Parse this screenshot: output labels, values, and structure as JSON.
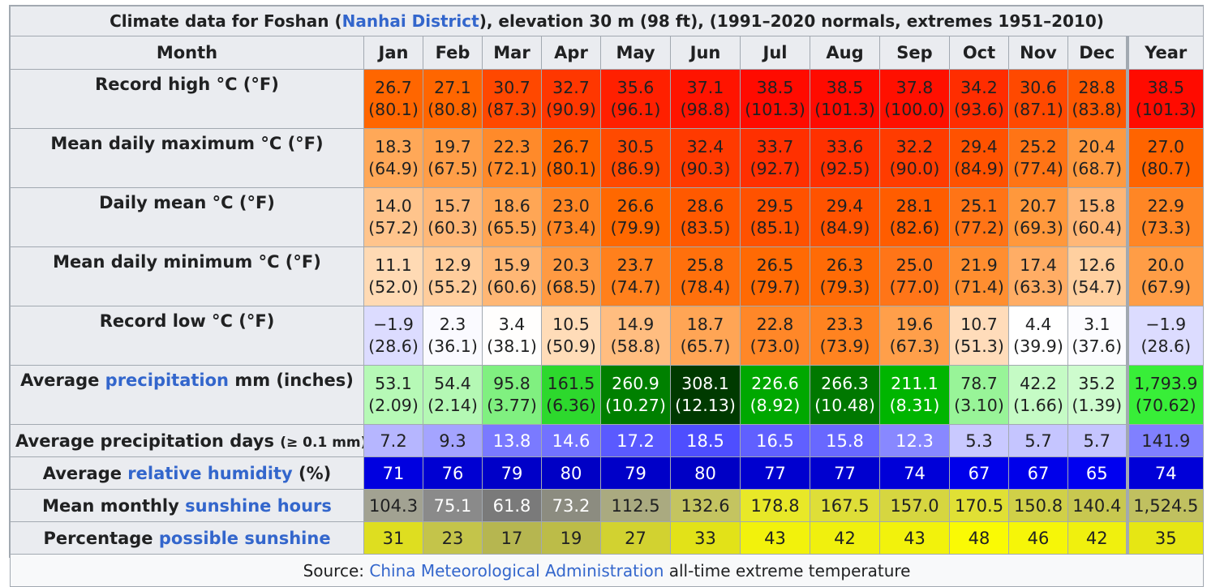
{
  "caption": {
    "prefix": "Climate data for Foshan (",
    "link": "Nanhai District",
    "suffix": "), elevation 30 m (98 ft), (1991–2020 normals, extremes 1951–2010)"
  },
  "header": {
    "month_label": "Month",
    "months": [
      "Jan",
      "Feb",
      "Mar",
      "Apr",
      "May",
      "Jun",
      "Jul",
      "Aug",
      "Sep",
      "Oct",
      "Nov",
      "Dec"
    ],
    "year_label": "Year"
  },
  "rows": {
    "record_high": {
      "label": "Record high °C (°F)",
      "cells": [
        {
          "c": "26.7",
          "f": "(80.1)",
          "bg": "#ff6600"
        },
        {
          "c": "27.1",
          "f": "(80.8)",
          "bg": "#ff6600"
        },
        {
          "c": "30.7",
          "f": "(87.3)",
          "bg": "#ff4800"
        },
        {
          "c": "32.7",
          "f": "(90.9)",
          "bg": "#ff3700"
        },
        {
          "c": "35.6",
          "f": "(96.1)",
          "bg": "#ff2000"
        },
        {
          "c": "37.1",
          "f": "(98.8)",
          "bg": "#ff1400"
        },
        {
          "c": "38.5",
          "f": "(101.3)",
          "bg": "#ff0b00"
        },
        {
          "c": "38.5",
          "f": "(101.3)",
          "bg": "#ff0b00"
        },
        {
          "c": "37.8",
          "f": "(100.0)",
          "bg": "#ff1000"
        },
        {
          "c": "34.2",
          "f": "(93.6)",
          "bg": "#ff2d00"
        },
        {
          "c": "30.6",
          "f": "(87.1)",
          "bg": "#ff4900"
        },
        {
          "c": "28.8",
          "f": "(83.8)",
          "bg": "#ff5800"
        },
        {
          "c": "38.5",
          "f": "(101.3)",
          "bg": "#ff0b00"
        }
      ]
    },
    "mean_max": {
      "label": "Mean daily maximum °C (°F)",
      "cells": [
        {
          "c": "18.3",
          "f": "(64.9)",
          "bg": "#ffa858"
        },
        {
          "c": "19.7",
          "f": "(67.5)",
          "bg": "#ff9e48"
        },
        {
          "c": "22.3",
          "f": "(72.1)",
          "bg": "#ff8a2a"
        },
        {
          "c": "26.7",
          "f": "(80.1)",
          "bg": "#ff6600"
        },
        {
          "c": "30.5",
          "f": "(86.9)",
          "bg": "#ff4a00"
        },
        {
          "c": "32.4",
          "f": "(90.3)",
          "bg": "#ff3a00"
        },
        {
          "c": "33.7",
          "f": "(92.7)",
          "bg": "#ff3000"
        },
        {
          "c": "33.6",
          "f": "(92.5)",
          "bg": "#ff3100"
        },
        {
          "c": "32.2",
          "f": "(90.0)",
          "bg": "#ff3c00"
        },
        {
          "c": "29.4",
          "f": "(84.9)",
          "bg": "#ff5200"
        },
        {
          "c": "25.2",
          "f": "(77.4)",
          "bg": "#ff7415"
        },
        {
          "c": "20.4",
          "f": "(68.7)",
          "bg": "#ff9a40"
        },
        {
          "c": "27.0",
          "f": "(80.7)",
          "bg": "#ff6400"
        }
      ]
    },
    "daily_mean": {
      "label": "Daily mean °C (°F)",
      "cells": [
        {
          "c": "14.0",
          "f": "(57.2)",
          "bg": "#ffc48c"
        },
        {
          "c": "15.7",
          "f": "(60.3)",
          "bg": "#ffb878"
        },
        {
          "c": "18.6",
          "f": "(65.5)",
          "bg": "#ffa655"
        },
        {
          "c": "23.0",
          "f": "(73.4)",
          "bg": "#ff8624"
        },
        {
          "c": "26.6",
          "f": "(79.9)",
          "bg": "#ff6800"
        },
        {
          "c": "28.6",
          "f": "(83.5)",
          "bg": "#ff5900"
        },
        {
          "c": "29.5",
          "f": "(85.1)",
          "bg": "#ff5200"
        },
        {
          "c": "29.4",
          "f": "(84.9)",
          "bg": "#ff5300"
        },
        {
          "c": "28.1",
          "f": "(82.6)",
          "bg": "#ff5d00"
        },
        {
          "c": "25.1",
          "f": "(77.2)",
          "bg": "#ff7416"
        },
        {
          "c": "20.7",
          "f": "(69.3)",
          "bg": "#ff983c"
        },
        {
          "c": "15.8",
          "f": "(60.4)",
          "bg": "#ffb777"
        },
        {
          "c": "22.9",
          "f": "(73.3)",
          "bg": "#ff8625"
        }
      ]
    },
    "mean_min": {
      "label": "Mean daily minimum °C (°F)",
      "cells": [
        {
          "c": "11.1",
          "f": "(52.0)",
          "bg": "#ffdab4"
        },
        {
          "c": "12.9",
          "f": "(55.2)",
          "bg": "#ffcd9c"
        },
        {
          "c": "15.9",
          "f": "(60.6)",
          "bg": "#ffb775"
        },
        {
          "c": "20.3",
          "f": "(68.5)",
          "bg": "#ff9a42"
        },
        {
          "c": "23.7",
          "f": "(74.7)",
          "bg": "#ff801c"
        },
        {
          "c": "25.8",
          "f": "(78.4)",
          "bg": "#ff700c"
        },
        {
          "c": "26.5",
          "f": "(79.7)",
          "bg": "#ff6a04"
        },
        {
          "c": "26.3",
          "f": "(79.3)",
          "bg": "#ff6b06"
        },
        {
          "c": "25.0",
          "f": "(77.0)",
          "bg": "#ff7518"
        },
        {
          "c": "21.9",
          "f": "(71.4)",
          "bg": "#ff8e30"
        },
        {
          "c": "17.4",
          "f": "(63.3)",
          "bg": "#ffad65"
        },
        {
          "c": "12.6",
          "f": "(54.7)",
          "bg": "#ffd0a0"
        },
        {
          "c": "20.0",
          "f": "(67.9)",
          "bg": "#ff9d46"
        }
      ]
    },
    "record_low": {
      "label": "Record low °C (°F)",
      "cells": [
        {
          "c": "−1.9",
          "f": "(28.6)",
          "bg": "#dcdcff"
        },
        {
          "c": "2.3",
          "f": "(36.1)",
          "bg": "#fafaff"
        },
        {
          "c": "3.4",
          "f": "(38.1)",
          "bg": "#fffefd"
        },
        {
          "c": "10.5",
          "f": "(50.9)",
          "bg": "#ffdcb8"
        },
        {
          "c": "14.9",
          "f": "(58.8)",
          "bg": "#ffbd80"
        },
        {
          "c": "18.7",
          "f": "(65.7)",
          "bg": "#ffa555"
        },
        {
          "c": "22.8",
          "f": "(73.0)",
          "bg": "#ff8728"
        },
        {
          "c": "23.3",
          "f": "(73.9)",
          "bg": "#ff8320"
        },
        {
          "c": "19.6",
          "f": "(67.3)",
          "bg": "#ff9f4a"
        },
        {
          "c": "10.7",
          "f": "(51.3)",
          "bg": "#ffdcba"
        },
        {
          "c": "4.4",
          "f": "(39.9)",
          "bg": "#ffffff"
        },
        {
          "c": "3.1",
          "f": "(37.6)",
          "bg": "#fcfcff"
        },
        {
          "c": "−1.9",
          "f": "(28.6)",
          "bg": "#dcdcff"
        }
      ]
    },
    "precip": {
      "label_pre": "Average ",
      "label_link": "precipitation",
      "label_post": " mm (inches)",
      "cells": [
        {
          "c": "53.1",
          "f": "(2.09)",
          "bg": "#b6f9b6",
          "fg": "#202122"
        },
        {
          "c": "54.4",
          "f": "(2.14)",
          "bg": "#b4f8b4",
          "fg": "#202122"
        },
        {
          "c": "95.8",
          "f": "(3.77)",
          "bg": "#80f080",
          "fg": "#202122"
        },
        {
          "c": "161.5",
          "f": "(6.36)",
          "bg": "#2dd82d",
          "fg": "#202122"
        },
        {
          "c": "260.9",
          "f": "(10.27)",
          "bg": "#008000",
          "fg": "#ffffff"
        },
        {
          "c": "308.1",
          "f": "(12.13)",
          "bg": "#003a00",
          "fg": "#ffffff"
        },
        {
          "c": "226.6",
          "f": "(8.92)",
          "bg": "#00a800",
          "fg": "#ffffff"
        },
        {
          "c": "266.3",
          "f": "(10.48)",
          "bg": "#007800",
          "fg": "#ffffff"
        },
        {
          "c": "211.1",
          "f": "(8.31)",
          "bg": "#00b500",
          "fg": "#ffffff"
        },
        {
          "c": "78.7",
          "f": "(3.10)",
          "bg": "#98f498",
          "fg": "#202122"
        },
        {
          "c": "42.2",
          "f": "(1.66)",
          "bg": "#c5fbc5",
          "fg": "#202122"
        },
        {
          "c": "35.2",
          "f": "(1.39)",
          "bg": "#cefcce",
          "fg": "#202122"
        },
        {
          "c": "1,793.9",
          "f": "(70.62)",
          "bg": "#38ee38",
          "fg": "#202122"
        }
      ]
    },
    "precip_days": {
      "label": "Average precipitation days",
      "label_small": "(≥ 0.1 mm)",
      "cells": [
        {
          "v": "7.2",
          "bg": "#b6b6ff",
          "fg": "#202122"
        },
        {
          "v": "9.3",
          "bg": "#a4a4ff",
          "fg": "#202122"
        },
        {
          "v": "13.8",
          "bg": "#7a7aff",
          "fg": "#ffffff"
        },
        {
          "v": "14.6",
          "bg": "#7272ff",
          "fg": "#ffffff"
        },
        {
          "v": "17.2",
          "bg": "#5a5aff",
          "fg": "#ffffff"
        },
        {
          "v": "18.5",
          "bg": "#4e4eff",
          "fg": "#ffffff"
        },
        {
          "v": "16.5",
          "bg": "#6060ff",
          "fg": "#ffffff"
        },
        {
          "v": "15.8",
          "bg": "#6868ff",
          "fg": "#ffffff"
        },
        {
          "v": "12.3",
          "bg": "#8888ff",
          "fg": "#ffffff"
        },
        {
          "v": "5.3",
          "bg": "#c9c9ff",
          "fg": "#202122"
        },
        {
          "v": "5.7",
          "bg": "#c5c5ff",
          "fg": "#202122"
        },
        {
          "v": "5.7",
          "bg": "#c5c5ff",
          "fg": "#202122"
        },
        {
          "v": "141.9",
          "bg": "#8080ff",
          "fg": "#202122"
        }
      ]
    },
    "humidity": {
      "label_pre": "Average ",
      "label_link": "relative humidity",
      "label_post": " (%)",
      "cells": [
        {
          "v": "71",
          "bg": "#0000e0",
          "fg": "#ffffff"
        },
        {
          "v": "76",
          "bg": "#0000d2",
          "fg": "#ffffff"
        },
        {
          "v": "79",
          "bg": "#0000c8",
          "fg": "#ffffff"
        },
        {
          "v": "80",
          "bg": "#0000c5",
          "fg": "#ffffff"
        },
        {
          "v": "79",
          "bg": "#0000c8",
          "fg": "#ffffff"
        },
        {
          "v": "80",
          "bg": "#0000c5",
          "fg": "#ffffff"
        },
        {
          "v": "77",
          "bg": "#0000cf",
          "fg": "#ffffff"
        },
        {
          "v": "77",
          "bg": "#0000cf",
          "fg": "#ffffff"
        },
        {
          "v": "74",
          "bg": "#0000d8",
          "fg": "#ffffff"
        },
        {
          "v": "67",
          "bg": "#0000ea",
          "fg": "#ffffff"
        },
        {
          "v": "67",
          "bg": "#0000ea",
          "fg": "#ffffff"
        },
        {
          "v": "65",
          "bg": "#0000f0",
          "fg": "#ffffff"
        },
        {
          "v": "74",
          "bg": "#0000d8",
          "fg": "#ffffff"
        }
      ]
    },
    "sunshine_hours": {
      "label_pre": "Mean monthly ",
      "label_link": "sunshine hours",
      "label_post": "",
      "cells": [
        {
          "v": "104.3",
          "bg": "#a2a292",
          "fg": "#202122"
        },
        {
          "v": "75.1",
          "bg": "#8a8a8a",
          "fg": "#ffffff"
        },
        {
          "v": "61.8",
          "bg": "#7a7a7a",
          "fg": "#ffffff"
        },
        {
          "v": "73.2",
          "bg": "#8c8c80",
          "fg": "#ffffff"
        },
        {
          "v": "112.5",
          "bg": "#aaaa80",
          "fg": "#202122"
        },
        {
          "v": "132.6",
          "bg": "#c4c460",
          "fg": "#202122"
        },
        {
          "v": "178.8",
          "bg": "#e8e828",
          "fg": "#202122"
        },
        {
          "v": "167.5",
          "bg": "#dede38",
          "fg": "#202122"
        },
        {
          "v": "157.0",
          "bg": "#d6d640",
          "fg": "#202122"
        },
        {
          "v": "170.5",
          "bg": "#e0e035",
          "fg": "#202122"
        },
        {
          "v": "150.8",
          "bg": "#d0d048",
          "fg": "#202122"
        },
        {
          "v": "140.4",
          "bg": "#c8c850",
          "fg": "#202122"
        },
        {
          "v": "1,524.5",
          "bg": "#c0c060",
          "fg": "#202122"
        }
      ]
    },
    "sunshine_pct": {
      "label_pre": "Percentage ",
      "label_link": "possible sunshine",
      "label_post": "",
      "cells": [
        {
          "v": "31",
          "bg": "#dede20",
          "fg": "#202122"
        },
        {
          "v": "23",
          "bg": "#c4c44a",
          "fg": "#202122"
        },
        {
          "v": "17",
          "bg": "#b6b650",
          "fg": "#202122"
        },
        {
          "v": "19",
          "bg": "#bcbc48",
          "fg": "#202122"
        },
        {
          "v": "27",
          "bg": "#d2d230",
          "fg": "#202122"
        },
        {
          "v": "33",
          "bg": "#e2e218",
          "fg": "#202122"
        },
        {
          "v": "43",
          "bg": "#f2f20c",
          "fg": "#202122"
        },
        {
          "v": "42",
          "bg": "#f0f00e",
          "fg": "#202122"
        },
        {
          "v": "43",
          "bg": "#f2f20c",
          "fg": "#202122"
        },
        {
          "v": "48",
          "bg": "#fafa04",
          "fg": "#202122"
        },
        {
          "v": "46",
          "bg": "#f6f608",
          "fg": "#202122"
        },
        {
          "v": "42",
          "bg": "#f0f00e",
          "fg": "#202122"
        },
        {
          "v": "35",
          "bg": "#e6e614",
          "fg": "#202122"
        }
      ]
    }
  },
  "source": {
    "prefix": "Source: ",
    "link": "China Meteorological Administration",
    "suffix": " all-time extreme temperature"
  }
}
